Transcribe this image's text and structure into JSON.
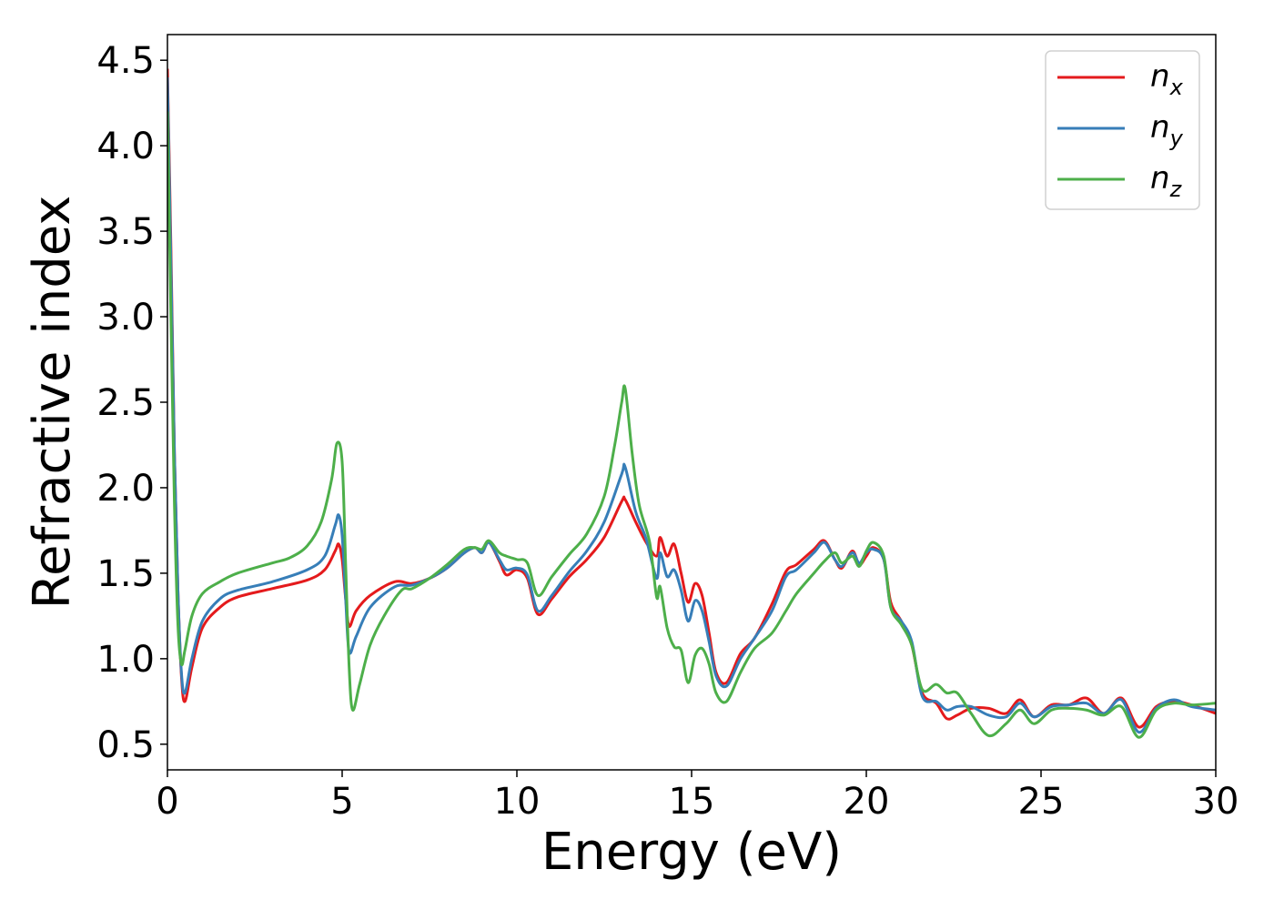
{
  "chart_data": {
    "type": "line",
    "title": "",
    "xlabel": "Energy (eV)",
    "ylabel": "Refractive index",
    "xlim": [
      0,
      30
    ],
    "ylim": [
      0.35,
      4.65
    ],
    "xticks": [
      0,
      5,
      10,
      15,
      20,
      25,
      30
    ],
    "xtick_labels": [
      "0",
      "5",
      "10",
      "15",
      "20",
      "25",
      "30"
    ],
    "yticks": [
      0.5,
      1.0,
      1.5,
      2.0,
      2.5,
      3.0,
      3.5,
      4.0,
      4.5
    ],
    "ytick_labels": [
      "0.5",
      "1.0",
      "1.5",
      "2.0",
      "2.5",
      "3.0",
      "3.5",
      "4.0",
      "4.5"
    ],
    "grid": false,
    "legend_position": "top-right",
    "series": [
      {
        "name": "n_x",
        "legend_base": "n",
        "legend_sub": "x",
        "color": "#e41a1c",
        "points": [
          [
            0,
            4.45
          ],
          [
            0.1,
            3.4
          ],
          [
            0.2,
            2.2
          ],
          [
            0.3,
            1.4
          ],
          [
            0.4,
            0.9
          ],
          [
            0.5,
            0.75
          ],
          [
            0.7,
            0.95
          ],
          [
            1.0,
            1.18
          ],
          [
            1.5,
            1.3
          ],
          [
            2.0,
            1.36
          ],
          [
            3.0,
            1.41
          ],
          [
            4.0,
            1.46
          ],
          [
            4.5,
            1.52
          ],
          [
            4.8,
            1.63
          ],
          [
            4.9,
            1.67
          ],
          [
            5.0,
            1.58
          ],
          [
            5.1,
            1.35
          ],
          [
            5.2,
            1.19
          ],
          [
            5.4,
            1.28
          ],
          [
            5.8,
            1.37
          ],
          [
            6.5,
            1.45
          ],
          [
            7.0,
            1.44
          ],
          [
            7.5,
            1.47
          ],
          [
            8.0,
            1.53
          ],
          [
            8.5,
            1.62
          ],
          [
            8.8,
            1.65
          ],
          [
            9.0,
            1.62
          ],
          [
            9.2,
            1.68
          ],
          [
            9.5,
            1.57
          ],
          [
            9.7,
            1.49
          ],
          [
            10.0,
            1.52
          ],
          [
            10.3,
            1.47
          ],
          [
            10.6,
            1.26
          ],
          [
            11.0,
            1.35
          ],
          [
            11.5,
            1.48
          ],
          [
            12.0,
            1.58
          ],
          [
            12.5,
            1.71
          ],
          [
            13.0,
            1.92
          ],
          [
            13.1,
            1.93
          ],
          [
            13.4,
            1.8
          ],
          [
            13.7,
            1.68
          ],
          [
            14.0,
            1.6
          ],
          [
            14.1,
            1.71
          ],
          [
            14.3,
            1.6
          ],
          [
            14.5,
            1.67
          ],
          [
            14.7,
            1.5
          ],
          [
            14.9,
            1.33
          ],
          [
            15.1,
            1.44
          ],
          [
            15.3,
            1.37
          ],
          [
            15.5,
            1.15
          ],
          [
            15.7,
            0.92
          ],
          [
            16.0,
            0.86
          ],
          [
            16.4,
            1.03
          ],
          [
            16.8,
            1.12
          ],
          [
            17.3,
            1.32
          ],
          [
            17.7,
            1.51
          ],
          [
            18.0,
            1.55
          ],
          [
            18.5,
            1.64
          ],
          [
            18.8,
            1.69
          ],
          [
            19.1,
            1.58
          ],
          [
            19.3,
            1.53
          ],
          [
            19.6,
            1.63
          ],
          [
            19.8,
            1.55
          ],
          [
            20.0,
            1.6
          ],
          [
            20.2,
            1.65
          ],
          [
            20.5,
            1.58
          ],
          [
            20.7,
            1.33
          ],
          [
            21.0,
            1.22
          ],
          [
            21.3,
            1.08
          ],
          [
            21.6,
            0.8
          ],
          [
            22.0,
            0.74
          ],
          [
            22.3,
            0.65
          ],
          [
            22.6,
            0.67
          ],
          [
            23.0,
            0.71
          ],
          [
            23.5,
            0.71
          ],
          [
            24.0,
            0.68
          ],
          [
            24.4,
            0.76
          ],
          [
            24.8,
            0.66
          ],
          [
            25.3,
            0.73
          ],
          [
            25.8,
            0.73
          ],
          [
            26.3,
            0.77
          ],
          [
            26.8,
            0.68
          ],
          [
            27.3,
            0.77
          ],
          [
            27.8,
            0.6
          ],
          [
            28.3,
            0.72
          ],
          [
            28.8,
            0.75
          ],
          [
            29.3,
            0.73
          ],
          [
            30.0,
            0.68
          ]
        ]
      },
      {
        "name": "n_y",
        "legend_base": "n",
        "legend_sub": "y",
        "color": "#377eb8",
        "points": [
          [
            0,
            4.4
          ],
          [
            0.1,
            3.3
          ],
          [
            0.2,
            2.2
          ],
          [
            0.3,
            1.4
          ],
          [
            0.4,
            0.92
          ],
          [
            0.5,
            0.8
          ],
          [
            0.7,
            1.0
          ],
          [
            1.0,
            1.22
          ],
          [
            1.5,
            1.35
          ],
          [
            2.0,
            1.4
          ],
          [
            3.0,
            1.45
          ],
          [
            4.0,
            1.52
          ],
          [
            4.5,
            1.6
          ],
          [
            4.8,
            1.78
          ],
          [
            4.9,
            1.84
          ],
          [
            5.0,
            1.72
          ],
          [
            5.1,
            1.35
          ],
          [
            5.2,
            1.04
          ],
          [
            5.4,
            1.13
          ],
          [
            5.8,
            1.3
          ],
          [
            6.5,
            1.42
          ],
          [
            7.0,
            1.43
          ],
          [
            7.5,
            1.47
          ],
          [
            8.0,
            1.53
          ],
          [
            8.5,
            1.62
          ],
          [
            8.8,
            1.65
          ],
          [
            9.0,
            1.62
          ],
          [
            9.2,
            1.68
          ],
          [
            9.5,
            1.58
          ],
          [
            9.7,
            1.52
          ],
          [
            10.0,
            1.53
          ],
          [
            10.3,
            1.49
          ],
          [
            10.6,
            1.28
          ],
          [
            11.0,
            1.37
          ],
          [
            11.5,
            1.51
          ],
          [
            12.0,
            1.63
          ],
          [
            12.5,
            1.8
          ],
          [
            13.0,
            2.08
          ],
          [
            13.1,
            2.12
          ],
          [
            13.4,
            1.86
          ],
          [
            13.7,
            1.7
          ],
          [
            14.0,
            1.47
          ],
          [
            14.1,
            1.62
          ],
          [
            14.3,
            1.48
          ],
          [
            14.5,
            1.52
          ],
          [
            14.7,
            1.4
          ],
          [
            14.9,
            1.22
          ],
          [
            15.1,
            1.34
          ],
          [
            15.3,
            1.28
          ],
          [
            15.5,
            1.1
          ],
          [
            15.7,
            0.9
          ],
          [
            16.0,
            0.84
          ],
          [
            16.4,
            1.0
          ],
          [
            16.8,
            1.12
          ],
          [
            17.3,
            1.28
          ],
          [
            17.7,
            1.48
          ],
          [
            18.0,
            1.52
          ],
          [
            18.5,
            1.62
          ],
          [
            18.8,
            1.68
          ],
          [
            19.1,
            1.58
          ],
          [
            19.3,
            1.54
          ],
          [
            19.6,
            1.62
          ],
          [
            19.8,
            1.56
          ],
          [
            20.0,
            1.62
          ],
          [
            20.2,
            1.64
          ],
          [
            20.5,
            1.58
          ],
          [
            20.7,
            1.3
          ],
          [
            21.0,
            1.22
          ],
          [
            21.3,
            1.1
          ],
          [
            21.6,
            0.78
          ],
          [
            22.0,
            0.75
          ],
          [
            22.3,
            0.7
          ],
          [
            22.6,
            0.72
          ],
          [
            23.0,
            0.72
          ],
          [
            23.5,
            0.67
          ],
          [
            24.0,
            0.66
          ],
          [
            24.4,
            0.74
          ],
          [
            24.8,
            0.66
          ],
          [
            25.3,
            0.72
          ],
          [
            25.8,
            0.73
          ],
          [
            26.3,
            0.74
          ],
          [
            26.8,
            0.68
          ],
          [
            27.3,
            0.76
          ],
          [
            27.8,
            0.57
          ],
          [
            28.3,
            0.71
          ],
          [
            28.8,
            0.76
          ],
          [
            29.3,
            0.72
          ],
          [
            30.0,
            0.7
          ]
        ]
      },
      {
        "name": "n_z",
        "legend_base": "n",
        "legend_sub": "z",
        "color": "#4daf4a",
        "points": [
          [
            0,
            4.2
          ],
          [
            0.1,
            3.0
          ],
          [
            0.2,
            1.9
          ],
          [
            0.3,
            1.2
          ],
          [
            0.4,
            0.97
          ],
          [
            0.5,
            1.05
          ],
          [
            0.7,
            1.25
          ],
          [
            1.0,
            1.38
          ],
          [
            1.5,
            1.45
          ],
          [
            2.0,
            1.5
          ],
          [
            3.0,
            1.56
          ],
          [
            3.5,
            1.59
          ],
          [
            4.0,
            1.66
          ],
          [
            4.4,
            1.8
          ],
          [
            4.7,
            2.05
          ],
          [
            4.85,
            2.26
          ],
          [
            5.0,
            2.15
          ],
          [
            5.1,
            1.55
          ],
          [
            5.2,
            0.95
          ],
          [
            5.3,
            0.7
          ],
          [
            5.5,
            0.85
          ],
          [
            5.8,
            1.08
          ],
          [
            6.2,
            1.25
          ],
          [
            6.7,
            1.4
          ],
          [
            7.0,
            1.41
          ],
          [
            7.5,
            1.47
          ],
          [
            8.0,
            1.55
          ],
          [
            8.5,
            1.64
          ],
          [
            8.8,
            1.65
          ],
          [
            9.0,
            1.64
          ],
          [
            9.2,
            1.69
          ],
          [
            9.5,
            1.62
          ],
          [
            9.7,
            1.6
          ],
          [
            10.0,
            1.58
          ],
          [
            10.3,
            1.56
          ],
          [
            10.6,
            1.37
          ],
          [
            11.0,
            1.48
          ],
          [
            11.5,
            1.61
          ],
          [
            12.0,
            1.73
          ],
          [
            12.5,
            1.95
          ],
          [
            12.8,
            2.25
          ],
          [
            13.0,
            2.5
          ],
          [
            13.1,
            2.58
          ],
          [
            13.3,
            2.2
          ],
          [
            13.5,
            1.9
          ],
          [
            13.8,
            1.68
          ],
          [
            14.0,
            1.36
          ],
          [
            14.1,
            1.42
          ],
          [
            14.3,
            1.18
          ],
          [
            14.5,
            1.07
          ],
          [
            14.7,
            1.05
          ],
          [
            14.9,
            0.86
          ],
          [
            15.1,
            1.02
          ],
          [
            15.3,
            1.06
          ],
          [
            15.5,
            0.97
          ],
          [
            15.7,
            0.8
          ],
          [
            16.0,
            0.75
          ],
          [
            16.4,
            0.92
          ],
          [
            16.8,
            1.06
          ],
          [
            17.3,
            1.15
          ],
          [
            17.7,
            1.28
          ],
          [
            18.0,
            1.38
          ],
          [
            18.5,
            1.5
          ],
          [
            18.8,
            1.57
          ],
          [
            19.1,
            1.62
          ],
          [
            19.3,
            1.56
          ],
          [
            19.6,
            1.6
          ],
          [
            19.8,
            1.54
          ],
          [
            20.0,
            1.63
          ],
          [
            20.2,
            1.68
          ],
          [
            20.5,
            1.6
          ],
          [
            20.7,
            1.3
          ],
          [
            21.0,
            1.2
          ],
          [
            21.3,
            1.08
          ],
          [
            21.6,
            0.82
          ],
          [
            22.0,
            0.85
          ],
          [
            22.3,
            0.8
          ],
          [
            22.6,
            0.8
          ],
          [
            23.0,
            0.68
          ],
          [
            23.5,
            0.55
          ],
          [
            24.0,
            0.62
          ],
          [
            24.4,
            0.7
          ],
          [
            24.8,
            0.62
          ],
          [
            25.3,
            0.7
          ],
          [
            25.8,
            0.71
          ],
          [
            26.3,
            0.7
          ],
          [
            26.8,
            0.67
          ],
          [
            27.3,
            0.72
          ],
          [
            27.8,
            0.54
          ],
          [
            28.3,
            0.7
          ],
          [
            28.8,
            0.74
          ],
          [
            29.3,
            0.73
          ],
          [
            30.0,
            0.74
          ]
        ]
      }
    ]
  }
}
